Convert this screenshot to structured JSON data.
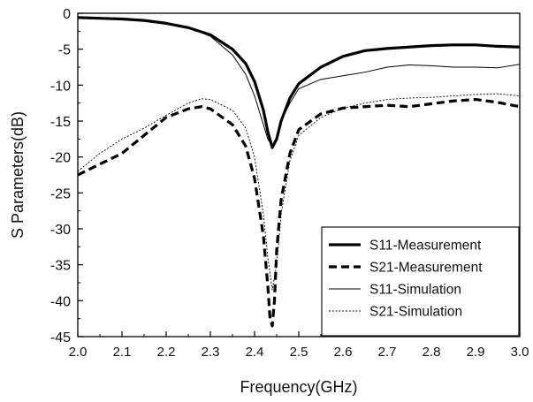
{
  "chart_data": {
    "type": "line",
    "title": "",
    "xlabel": "Frequency(GHz)",
    "ylabel": "S Parameters(dB)",
    "xlim": [
      2.0,
      3.0
    ],
    "ylim": [
      -45,
      0
    ],
    "xticks": [
      "2.0",
      "2.1",
      "2.2",
      "2.3",
      "2.4",
      "2.5",
      "2.6",
      "2.7",
      "2.8",
      "2.9",
      "3.0"
    ],
    "yticks": [
      "0",
      "-5",
      "-10",
      "-15",
      "-20",
      "-25",
      "-30",
      "-35",
      "-40",
      "-45"
    ],
    "grid": false,
    "legend_position": "bottom-right",
    "series": [
      {
        "name": "S11-Measurement",
        "style": "solid-thick",
        "color": "#000000",
        "x": [
          2.0,
          2.05,
          2.1,
          2.15,
          2.2,
          2.25,
          2.3,
          2.35,
          2.38,
          2.4,
          2.42,
          2.43,
          2.44,
          2.45,
          2.46,
          2.48,
          2.5,
          2.55,
          2.6,
          2.65,
          2.7,
          2.75,
          2.8,
          2.85,
          2.9,
          2.95,
          3.0
        ],
        "y": [
          -0.6,
          -0.7,
          -0.8,
          -1.0,
          -1.4,
          -2.0,
          -3.0,
          -5.0,
          -7.0,
          -9.5,
          -13.5,
          -16.5,
          -18.7,
          -17.5,
          -15.0,
          -11.8,
          -9.8,
          -7.5,
          -6.0,
          -5.2,
          -4.9,
          -4.7,
          -4.5,
          -4.4,
          -4.4,
          -4.6,
          -4.7
        ]
      },
      {
        "name": "S21-Measurement",
        "style": "dashed-thick",
        "color": "#000000",
        "x": [
          2.0,
          2.05,
          2.1,
          2.15,
          2.2,
          2.25,
          2.28,
          2.3,
          2.35,
          2.38,
          2.4,
          2.42,
          2.43,
          2.435,
          2.44,
          2.445,
          2.45,
          2.46,
          2.48,
          2.5,
          2.55,
          2.6,
          2.65,
          2.7,
          2.75,
          2.8,
          2.85,
          2.9,
          2.95,
          3.0
        ],
        "y": [
          -22.5,
          -21.0,
          -19.5,
          -17.0,
          -14.5,
          -13.3,
          -13.0,
          -13.3,
          -15.5,
          -18.5,
          -23.0,
          -31.0,
          -38.0,
          -42.5,
          -43.5,
          -40.0,
          -33.0,
          -26.0,
          -19.5,
          -16.2,
          -14.0,
          -13.2,
          -13.0,
          -12.8,
          -13.0,
          -12.6,
          -12.2,
          -12.0,
          -12.4,
          -13.0
        ]
      },
      {
        "name": "S11-Simulation",
        "style": "solid-thin",
        "color": "#000000",
        "x": [
          2.0,
          2.05,
          2.1,
          2.15,
          2.2,
          2.25,
          2.3,
          2.35,
          2.38,
          2.4,
          2.42,
          2.43,
          2.44,
          2.45,
          2.46,
          2.48,
          2.5,
          2.55,
          2.6,
          2.65,
          2.7,
          2.75,
          2.8,
          2.85,
          2.9,
          2.95,
          3.0
        ],
        "y": [
          -0.6,
          -0.7,
          -0.8,
          -1.0,
          -1.4,
          -2.0,
          -3.2,
          -5.8,
          -8.5,
          -11.5,
          -15.5,
          -17.5,
          -18.5,
          -17.2,
          -15.0,
          -12.5,
          -10.5,
          -9.2,
          -8.7,
          -8.2,
          -7.5,
          -7.2,
          -7.3,
          -7.5,
          -7.5,
          -7.6,
          -7.1
        ]
      },
      {
        "name": "S21-Simulation",
        "style": "dotted-thin",
        "color": "#000000",
        "x": [
          2.0,
          2.05,
          2.1,
          2.15,
          2.2,
          2.25,
          2.28,
          2.3,
          2.35,
          2.38,
          2.4,
          2.42,
          2.43,
          2.44,
          2.45,
          2.46,
          2.48,
          2.5,
          2.55,
          2.6,
          2.65,
          2.7,
          2.75,
          2.8,
          2.85,
          2.9,
          2.95,
          3.0
        ],
        "y": [
          -22.0,
          -19.5,
          -17.5,
          -16.0,
          -14.2,
          -12.5,
          -11.9,
          -12.0,
          -13.5,
          -16.0,
          -20.0,
          -28.0,
          -34.0,
          -38.5,
          -35.0,
          -28.0,
          -20.5,
          -17.0,
          -14.5,
          -13.2,
          -12.5,
          -12.0,
          -11.8,
          -11.7,
          -11.5,
          -11.3,
          -11.2,
          -11.5
        ]
      }
    ]
  }
}
